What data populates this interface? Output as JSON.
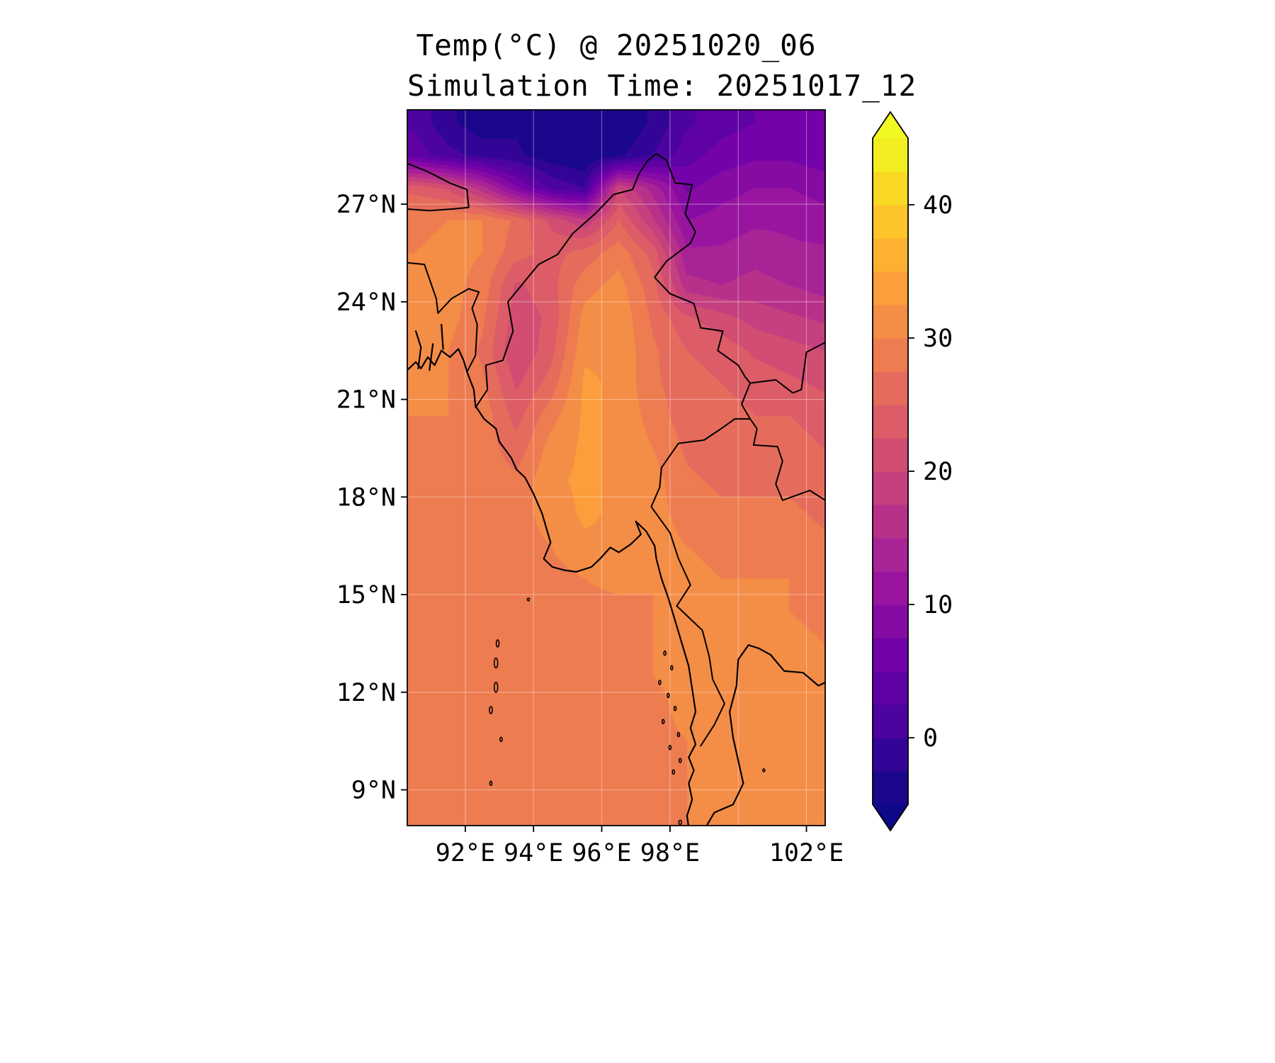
{
  "figure": {
    "title_line1": "Temp(°C) @ 20251020_06",
    "title_line2": "Simulation Time: 20251017_12"
  },
  "chart_data": {
    "type": "heatmap",
    "title": "Temp(°C) @ 20251020_06",
    "subtitle": "Simulation Time: 20251017_12",
    "variable": "Temperature",
    "units": "°C",
    "valid_time": "20251020_06",
    "simulation_time": "20251017_12",
    "extent": {
      "lon_min": 90.3,
      "lon_max": 102.55,
      "lat_min": 7.9,
      "lat_max": 29.9
    },
    "xticks": [
      {
        "value": 92,
        "label": "92°E"
      },
      {
        "value": 94,
        "label": "94°E"
      },
      {
        "value": 96,
        "label": "96°E"
      },
      {
        "value": 98,
        "label": "98°E"
      },
      {
        "value": 102,
        "label": "102°E"
      }
    ],
    "yticks": [
      {
        "value": 27,
        "label": "27°N"
      },
      {
        "value": 24,
        "label": "24°N"
      },
      {
        "value": 21,
        "label": "21°N"
      },
      {
        "value": 18,
        "label": "18°N"
      },
      {
        "value": 15,
        "label": "15°N"
      },
      {
        "value": 12,
        "label": "12°N"
      },
      {
        "value": 9,
        "label": "9°N"
      }
    ],
    "grid_lons": [
      92,
      94,
      96,
      98,
      100,
      102
    ],
    "grid_lats": [
      9,
      12,
      15,
      18,
      21,
      24,
      27
    ],
    "colorbar": {
      "min": -5,
      "max": 45,
      "step": 2.5,
      "ticks": [
        0,
        10,
        20,
        30,
        40
      ],
      "extend": "both"
    },
    "colormap": [
      "#0d0887",
      "#46039f",
      "#7201a8",
      "#9c179e",
      "#bd3786",
      "#d8576b",
      "#ed7953",
      "#fb9f3a",
      "#fdca26",
      "#f0f921"
    ],
    "temperature_grid": {
      "lon_start": 90.5,
      "lon_step": 1,
      "lat_start": 29.5,
      "lat_step": -1,
      "values": [
        [
          2,
          -2,
          -4,
          -3,
          -6,
          -7,
          -5,
          -2,
          2,
          4,
          5,
          5,
          5
        ],
        [
          4,
          1,
          -1,
          -2,
          -4,
          -5,
          -3,
          0,
          4,
          6,
          7,
          7,
          6
        ],
        [
          24,
          22,
          16,
          8,
          2,
          0,
          20,
          14,
          7,
          9,
          10,
          10,
          9
        ],
        [
          29,
          30,
          30,
          27,
          22,
          18,
          25,
          18,
          10,
          11,
          12,
          12,
          11
        ],
        [
          30,
          31,
          30,
          26,
          24,
          26,
          29,
          24,
          13,
          13,
          14,
          13,
          13
        ],
        [
          30,
          31,
          29,
          22,
          24,
          29,
          31,
          26,
          16,
          15,
          16,
          15,
          14
        ],
        [
          31,
          31,
          28,
          21,
          23,
          31,
          32,
          27,
          23,
          21,
          19,
          18,
          17
        ],
        [
          31,
          30,
          27,
          20,
          24,
          32,
          32,
          28,
          25,
          24,
          22,
          21,
          20
        ],
        [
          30,
          30,
          28,
          22,
          26,
          33,
          32,
          28,
          26,
          25,
          24,
          23,
          22
        ],
        [
          30,
          30,
          29,
          24,
          29,
          33,
          32,
          29,
          26,
          26,
          25,
          25,
          24
        ],
        [
          29,
          29,
          29,
          26,
          31,
          33,
          32,
          30,
          27,
          26,
          26,
          26,
          25
        ],
        [
          29,
          30,
          29,
          28,
          32,
          33,
          32,
          31,
          28,
          27,
          27,
          27,
          26
        ],
        [
          29,
          29,
          29,
          29,
          31,
          33,
          32,
          31,
          29,
          28,
          28,
          28,
          27
        ],
        [
          29,
          29,
          29,
          29,
          30,
          32,
          32,
          31,
          30,
          29,
          29,
          29,
          28
        ],
        [
          29,
          29,
          29,
          29,
          29,
          30,
          31,
          30,
          31,
          30,
          30,
          30,
          29
        ],
        [
          29,
          29,
          29,
          29,
          29,
          29,
          29,
          30,
          31,
          31,
          31,
          30,
          29
        ],
        [
          29,
          29,
          29,
          29,
          29,
          29,
          29,
          30,
          32,
          32,
          31,
          31,
          30
        ],
        [
          29,
          29,
          29,
          29,
          29,
          29,
          29,
          30,
          31,
          32,
          32,
          31,
          30
        ],
        [
          29,
          29,
          29,
          29,
          29,
          29,
          29,
          29,
          31,
          32,
          31,
          31,
          30
        ],
        [
          29,
          29,
          29,
          29,
          29,
          29,
          29,
          29,
          30,
          32,
          31,
          30,
          30
        ],
        [
          29,
          29,
          29,
          29,
          29,
          29,
          29,
          29,
          30,
          31,
          31,
          30,
          30
        ],
        [
          29,
          29,
          29,
          29,
          29,
          29,
          29,
          29,
          30,
          31,
          30,
          30,
          30
        ]
      ]
    },
    "coastlines": [
      [
        [
          90.3,
          21.9
        ],
        [
          90.55,
          22.15
        ],
        [
          90.7,
          21.95
        ],
        [
          90.9,
          22.3
        ],
        [
          91.1,
          22.05
        ],
        [
          91.3,
          22.5
        ],
        [
          91.55,
          22.3
        ],
        [
          91.8,
          22.55
        ],
        [
          91.95,
          22.2
        ],
        [
          92.05,
          21.85
        ],
        [
          92.25,
          21.3
        ],
        [
          92.3,
          20.8
        ],
        [
          92.55,
          20.4
        ],
        [
          92.9,
          20.1
        ],
        [
          93.0,
          19.7
        ],
        [
          93.35,
          19.2
        ],
        [
          93.5,
          18.85
        ],
        [
          93.75,
          18.6
        ],
        [
          94.0,
          18.1
        ],
        [
          94.25,
          17.5
        ],
        [
          94.5,
          16.6
        ],
        [
          94.3,
          16.1
        ],
        [
          94.55,
          15.85
        ],
        [
          94.9,
          15.75
        ],
        [
          95.25,
          15.7
        ],
        [
          95.7,
          15.85
        ],
        [
          95.95,
          16.1
        ],
        [
          96.25,
          16.45
        ],
        [
          96.5,
          16.3
        ],
        [
          96.85,
          16.55
        ],
        [
          97.15,
          16.85
        ],
        [
          97.0,
          17.25
        ],
        [
          97.3,
          16.95
        ],
        [
          97.55,
          16.5
        ],
        [
          97.6,
          16.1
        ],
        [
          97.75,
          15.5
        ],
        [
          97.95,
          14.9
        ],
        [
          98.15,
          14.2
        ],
        [
          98.35,
          13.5
        ],
        [
          98.55,
          12.8
        ],
        [
          98.65,
          12.1
        ],
        [
          98.75,
          11.4
        ],
        [
          98.6,
          10.9
        ],
        [
          98.75,
          10.4
        ],
        [
          98.55,
          10.0
        ],
        [
          98.7,
          9.6
        ],
        [
          98.55,
          9.2
        ],
        [
          98.65,
          8.7
        ],
        [
          98.5,
          8.2
        ],
        [
          98.55,
          7.85
        ]
      ],
      [
        [
          99.05,
          7.85
        ],
        [
          99.3,
          8.3
        ],
        [
          99.85,
          8.55
        ],
        [
          100.15,
          9.2
        ],
        [
          100.0,
          9.9
        ],
        [
          99.85,
          10.6
        ],
        [
          99.75,
          11.4
        ],
        [
          99.95,
          12.2
        ],
        [
          100.0,
          13.0
        ],
        [
          100.3,
          13.45
        ],
        [
          100.6,
          13.35
        ],
        [
          100.95,
          13.15
        ],
        [
          101.35,
          12.65
        ],
        [
          101.9,
          12.6
        ],
        [
          102.35,
          12.2
        ],
        [
          102.55,
          12.3
        ]
      ],
      [
        [
          90.62,
          21.95
        ],
        [
          90.7,
          22.6
        ],
        [
          90.55,
          23.1
        ]
      ],
      [
        [
          90.95,
          21.9
        ],
        [
          91.05,
          22.7
        ]
      ],
      [
        [
          91.35,
          22.55
        ],
        [
          91.3,
          23.3
        ]
      ]
    ],
    "borders": [
      [
        [
          92.05,
          21.85
        ],
        [
          92.3,
          22.35
        ],
        [
          92.35,
          23.3
        ],
        [
          92.2,
          23.8
        ],
        [
          92.4,
          24.3
        ],
        [
          92.1,
          24.4
        ],
        [
          91.6,
          24.1
        ],
        [
          91.2,
          23.65
        ],
        [
          91.15,
          24.1
        ],
        [
          90.8,
          25.15
        ],
        [
          90.3,
          25.2
        ]
      ],
      [
        [
          92.3,
          20.75
        ],
        [
          92.65,
          21.3
        ],
        [
          92.6,
          22.05
        ],
        [
          93.1,
          22.2
        ],
        [
          93.4,
          23.1
        ],
        [
          93.25,
          24.0
        ],
        [
          94.15,
          25.15
        ],
        [
          94.7,
          25.45
        ],
        [
          95.15,
          26.1
        ],
        [
          95.8,
          26.7
        ],
        [
          96.35,
          27.3
        ],
        [
          96.9,
          27.45
        ],
        [
          97.1,
          27.95
        ],
        [
          97.35,
          28.35
        ]
      ],
      [
        [
          97.35,
          28.35
        ],
        [
          97.6,
          28.55
        ],
        [
          97.9,
          28.35
        ],
        [
          98.15,
          27.65
        ],
        [
          98.65,
          27.6
        ],
        [
          98.45,
          26.7
        ],
        [
          98.75,
          26.15
        ],
        [
          98.6,
          25.8
        ],
        [
          97.9,
          25.25
        ],
        [
          97.55,
          24.75
        ],
        [
          98.0,
          24.25
        ],
        [
          98.7,
          23.95
        ],
        [
          98.9,
          23.2
        ],
        [
          99.55,
          23.1
        ],
        [
          99.4,
          22.5
        ],
        [
          100.0,
          22.05
        ],
        [
          100.2,
          21.7
        ],
        [
          100.35,
          21.5
        ]
      ],
      [
        [
          100.35,
          21.5
        ],
        [
          101.1,
          21.6
        ],
        [
          101.6,
          21.2
        ],
        [
          101.85,
          21.3
        ],
        [
          102.0,
          22.45
        ],
        [
          102.55,
          22.75
        ]
      ],
      [
        [
          100.35,
          21.5
        ],
        [
          100.1,
          20.85
        ],
        [
          100.35,
          20.4
        ],
        [
          100.55,
          20.1
        ],
        [
          100.45,
          19.6
        ],
        [
          101.15,
          19.55
        ],
        [
          101.3,
          19.1
        ],
        [
          101.1,
          18.4
        ],
        [
          101.3,
          17.9
        ],
        [
          102.1,
          18.2
        ],
        [
          102.55,
          17.9
        ]
      ],
      [
        [
          100.35,
          20.4
        ],
        [
          99.9,
          20.4
        ],
        [
          99.5,
          20.1
        ],
        [
          99.0,
          19.75
        ],
        [
          98.25,
          19.65
        ],
        [
          97.75,
          18.9
        ],
        [
          97.7,
          18.3
        ],
        [
          97.45,
          17.7
        ],
        [
          98.0,
          16.9
        ],
        [
          98.25,
          16.1
        ],
        [
          98.6,
          15.3
        ],
        [
          98.2,
          14.65
        ],
        [
          98.95,
          13.9
        ],
        [
          99.15,
          13.1
        ],
        [
          99.25,
          12.4
        ],
        [
          99.6,
          11.65
        ],
        [
          99.3,
          11.0
        ],
        [
          98.9,
          10.35
        ]
      ],
      [
        [
          90.3,
          26.85
        ],
        [
          90.95,
          26.8
        ],
        [
          91.6,
          26.85
        ],
        [
          92.1,
          26.9
        ],
        [
          92.05,
          27.45
        ],
        [
          91.55,
          27.65
        ],
        [
          90.9,
          28.0
        ],
        [
          90.3,
          28.25
        ]
      ]
    ],
    "islands": [
      [
        92.95,
        13.5,
        2,
        5
      ],
      [
        92.9,
        12.9,
        2.5,
        7
      ],
      [
        92.9,
        12.15,
        2.5,
        7
      ],
      [
        92.75,
        11.45,
        2,
        5
      ],
      [
        93.05,
        10.55,
        1.5,
        3
      ],
      [
        92.75,
        9.2,
        1.5,
        3
      ],
      [
        93.85,
        14.85,
        1.5,
        2
      ],
      [
        97.85,
        13.2,
        1.5,
        3
      ],
      [
        98.05,
        12.75,
        1.5,
        3
      ],
      [
        97.7,
        12.3,
        1.5,
        3
      ],
      [
        97.95,
        11.9,
        1.5,
        3
      ],
      [
        98.15,
        11.5,
        1.5,
        3
      ],
      [
        97.8,
        11.1,
        1.5,
        3
      ],
      [
        98.25,
        10.7,
        1.5,
        3
      ],
      [
        98.0,
        10.3,
        1.5,
        3
      ],
      [
        98.3,
        9.9,
        1.5,
        3
      ],
      [
        98.1,
        9.55,
        1.5,
        3
      ],
      [
        98.3,
        8.0,
        2,
        3
      ],
      [
        100.75,
        9.6,
        1.5,
        2
      ]
    ]
  }
}
